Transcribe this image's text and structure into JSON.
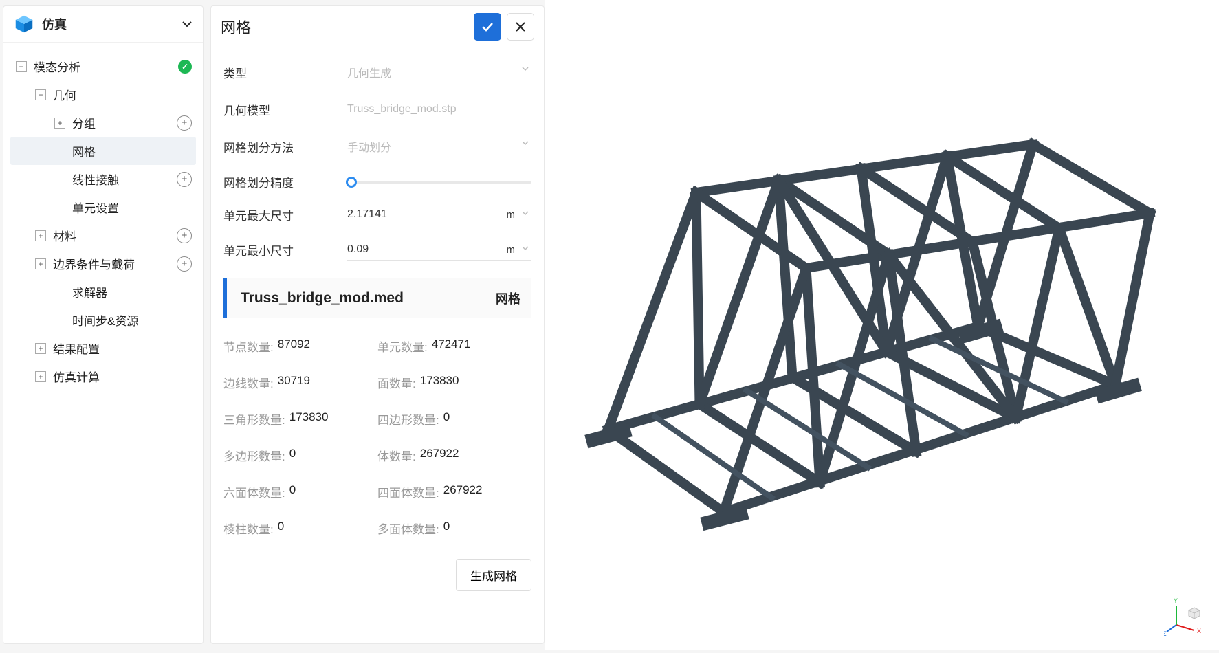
{
  "sidebar": {
    "title": "仿真",
    "cube_colors": {
      "top": "#6ec6ff",
      "left": "#1b8de3",
      "right": "#0a6fc2"
    },
    "tree": {
      "root": {
        "label": "模态分析",
        "status": "ok"
      },
      "geometry": {
        "label": "几何"
      },
      "group": {
        "label": "分组"
      },
      "mesh": {
        "label": "网格"
      },
      "contact": {
        "label": "线性接触"
      },
      "element_settings": {
        "label": "单元设置"
      },
      "material": {
        "label": "材料"
      },
      "bc": {
        "label": "边界条件与载荷"
      },
      "solver": {
        "label": "求解器"
      },
      "timestep": {
        "label": "时间步&资源"
      },
      "results": {
        "label": "结果配置"
      },
      "solve": {
        "label": "仿真计算"
      }
    }
  },
  "panel": {
    "title": "网格",
    "form": {
      "type_label": "类型",
      "type_value": "几何生成",
      "model_label": "几何模型",
      "model_value": "Truss_bridge_mod.stp",
      "method_label": "网格划分方法",
      "method_value": "手动划分",
      "precision_label": "网格划分精度",
      "max_label": "单元最大尺寸",
      "max_value": "2.17141",
      "min_label": "单元最小尺寸",
      "min_value": "0.09",
      "unit": "m"
    },
    "mesh_file": {
      "name": "Truss_bridge_mod.med",
      "tag": "网格"
    },
    "stats": [
      {
        "label": "节点数量:",
        "value": "87092"
      },
      {
        "label": "单元数量:",
        "value": "472471"
      },
      {
        "label": "边线数量:",
        "value": "30719"
      },
      {
        "label": "面数量:",
        "value": "173830"
      },
      {
        "label": "三角形数量:",
        "value": "173830"
      },
      {
        "label": "四边形数量:",
        "value": "0"
      },
      {
        "label": "多边形数量:",
        "value": "0"
      },
      {
        "label": "体数量:",
        "value": "267922"
      },
      {
        "label": "六面体数量:",
        "value": "0"
      },
      {
        "label": "四面体数量:",
        "value": "267922"
      },
      {
        "label": "棱柱数量:",
        "value": "0"
      },
      {
        "label": "多面体数量:",
        "value": "0"
      }
    ],
    "generate_btn": "生成网格"
  },
  "viewport": {
    "truss_color": "#3a4651",
    "bg": "#ffffff",
    "axes": {
      "x": "#e01b1b",
      "y": "#1db83a",
      "z": "#1e6fd9"
    }
  }
}
